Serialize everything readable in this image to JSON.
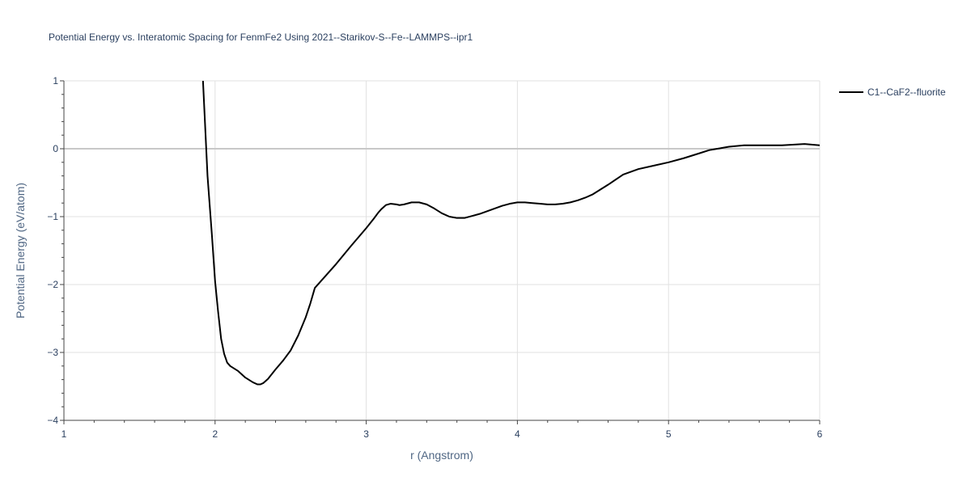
{
  "chart_data": {
    "type": "line",
    "title": "Potential Energy vs. Interatomic Spacing for FenmFe2 Using 2021--Starikov-S--Fe--LAMMPS--ipr1",
    "xlabel": "r (Angstrom)",
    "ylabel": "Potential Energy (eV/atom)",
    "xlim": [
      1,
      6
    ],
    "ylim": [
      -4,
      1
    ],
    "x_ticks": [
      1,
      2,
      3,
      4,
      5,
      6
    ],
    "x_tick_labels": [
      "1",
      "2",
      "3",
      "4",
      "5",
      "6"
    ],
    "y_ticks": [
      1,
      0,
      -1,
      -2,
      -3,
      -4
    ],
    "y_tick_labels": [
      "1",
      "0",
      "−1",
      "−2",
      "−3",
      "−4"
    ],
    "grid": true,
    "legend_position": "top-right",
    "series": [
      {
        "name": "C1--CaF2--fluorite",
        "color": "#000000",
        "x": [
          1.92,
          1.95,
          1.98,
          2.0,
          2.02,
          2.04,
          2.06,
          2.08,
          2.1,
          2.15,
          2.2,
          2.25,
          2.28,
          2.3,
          2.32,
          2.35,
          2.4,
          2.45,
          2.5,
          2.55,
          2.6,
          2.63,
          2.66,
          2.7,
          2.8,
          2.9,
          3.0,
          3.05,
          3.08,
          3.1,
          3.13,
          3.16,
          3.2,
          3.22,
          3.25,
          3.3,
          3.35,
          3.4,
          3.45,
          3.5,
          3.55,
          3.6,
          3.65,
          3.7,
          3.75,
          3.8,
          3.85,
          3.9,
          3.95,
          4.0,
          4.05,
          4.1,
          4.15,
          4.2,
          4.25,
          4.3,
          4.35,
          4.4,
          4.45,
          4.5,
          4.6,
          4.7,
          4.8,
          4.9,
          5.0,
          5.1,
          5.2,
          5.27,
          5.35,
          5.4,
          5.5,
          5.6,
          5.75,
          5.9,
          6.0
        ],
        "y": [
          1.0,
          -0.4,
          -1.3,
          -1.95,
          -2.4,
          -2.8,
          -3.02,
          -3.15,
          -3.2,
          -3.27,
          -3.37,
          -3.44,
          -3.47,
          -3.47,
          -3.45,
          -3.39,
          -3.25,
          -3.12,
          -2.97,
          -2.75,
          -2.48,
          -2.28,
          -2.05,
          -1.95,
          -1.7,
          -1.43,
          -1.17,
          -1.03,
          -0.94,
          -0.89,
          -0.83,
          -0.81,
          -0.82,
          -0.83,
          -0.82,
          -0.79,
          -0.79,
          -0.82,
          -0.88,
          -0.95,
          -1.0,
          -1.02,
          -1.02,
          -0.99,
          -0.96,
          -0.92,
          -0.88,
          -0.84,
          -0.81,
          -0.79,
          -0.79,
          -0.8,
          -0.81,
          -0.82,
          -0.82,
          -0.81,
          -0.79,
          -0.76,
          -0.72,
          -0.67,
          -0.53,
          -0.38,
          -0.3,
          -0.25,
          -0.2,
          -0.14,
          -0.07,
          -0.02,
          0.01,
          0.03,
          0.05,
          0.05,
          0.05,
          0.07,
          0.05
        ]
      }
    ]
  }
}
